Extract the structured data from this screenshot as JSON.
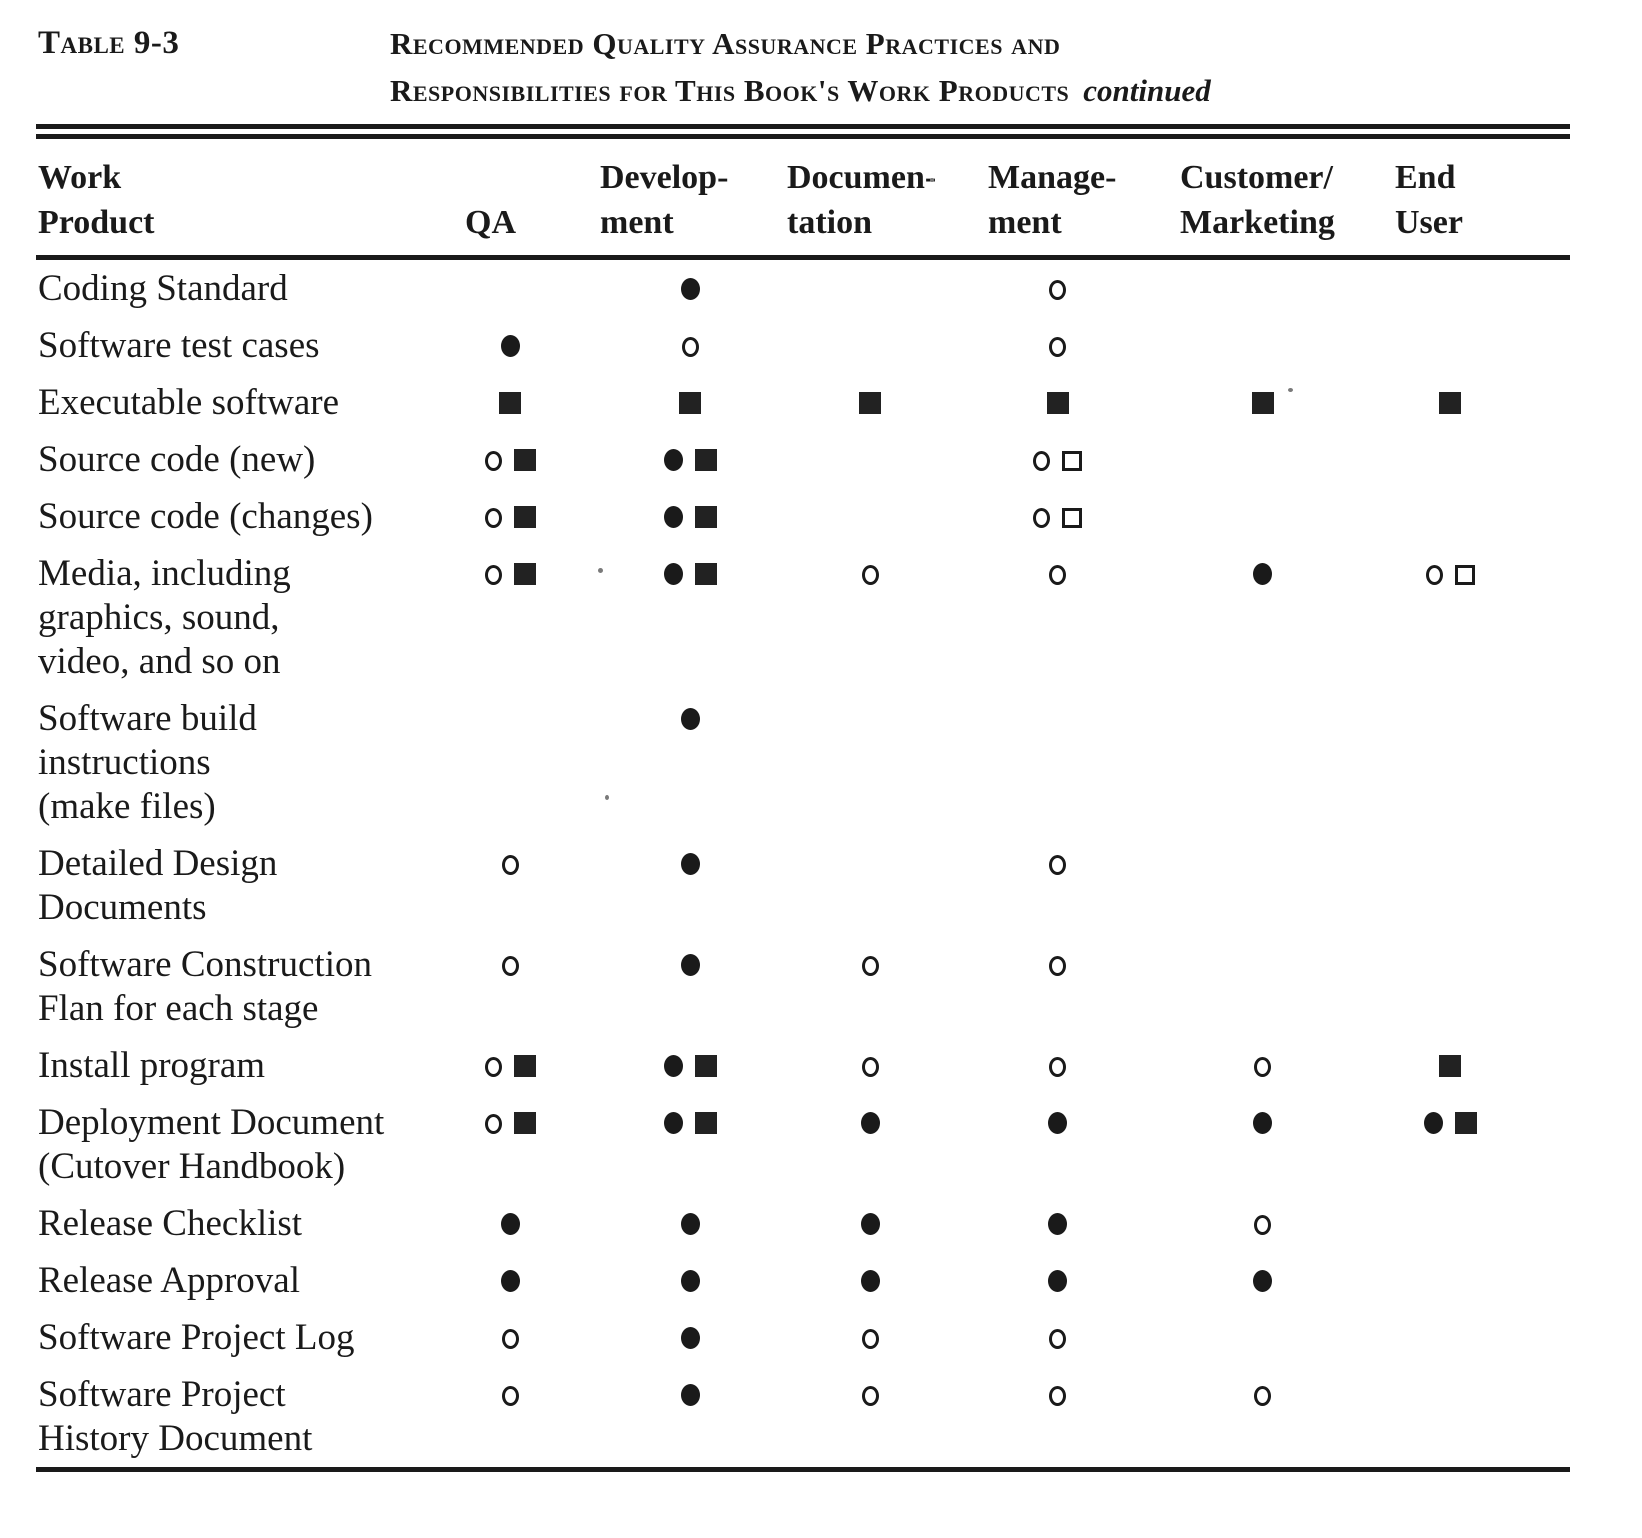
{
  "colors": {
    "ink": "#1a1a1a",
    "paper": "#ffffff"
  },
  "caption": {
    "table_label": "Table 9-3",
    "title_line1": "Recommended Quality Assurance Practices and",
    "title_line2": "Responsibilities for This Book's Work Products",
    "continued": "continued"
  },
  "header": {
    "columns": [
      {
        "l1": "Work",
        "l2": "Product"
      },
      {
        "l1": "",
        "l2": "QA"
      },
      {
        "l1": "Develop-",
        "l2": "ment"
      },
      {
        "l1": "Documen-",
        "l2": "tation"
      },
      {
        "l1": "Manage-",
        "l2": "ment"
      },
      {
        "l1": "Customer/",
        "l2": "Marketing"
      },
      {
        "l1": "End",
        "l2": "User"
      }
    ]
  },
  "symbols": {
    "fc": "filled-circle",
    "oc": "open-circle",
    "fs": "filled-square",
    "os": "open-square"
  },
  "rows": [
    {
      "label": [
        "Coding Standard"
      ],
      "cells": [
        [],
        [
          "fc"
        ],
        [],
        [
          "oc"
        ],
        [],
        []
      ]
    },
    {
      "label": [
        "Software test cases"
      ],
      "cells": [
        [
          "fc"
        ],
        [
          "oc"
        ],
        [],
        [
          "oc"
        ],
        [],
        []
      ]
    },
    {
      "label": [
        "Executable software"
      ],
      "cells": [
        [
          "fs"
        ],
        [
          "fs"
        ],
        [
          "fs"
        ],
        [
          "fs"
        ],
        [
          "fs"
        ],
        [
          "fs"
        ]
      ]
    },
    {
      "label": [
        "Source code (new)"
      ],
      "cells": [
        [
          "oc",
          "fs"
        ],
        [
          "fc",
          "fs"
        ],
        [],
        [
          "oc",
          "os"
        ],
        [],
        []
      ]
    },
    {
      "label": [
        "Source code (changes)"
      ],
      "cells": [
        [
          "oc",
          "fs"
        ],
        [
          "fc",
          "fs"
        ],
        [],
        [
          "oc",
          "os"
        ],
        [],
        []
      ]
    },
    {
      "label": [
        "Media, including",
        "graphics, sound,",
        "video, and so on"
      ],
      "cells": [
        [
          "oc",
          "fs"
        ],
        [
          "fc",
          "fs"
        ],
        [
          "oc"
        ],
        [
          "oc"
        ],
        [
          "fc"
        ],
        [
          "oc",
          "os"
        ]
      ]
    },
    {
      "label": [
        "Software  build",
        "instructions",
        "(make files)"
      ],
      "cells": [
        [],
        [
          "fc"
        ],
        [],
        [],
        [],
        []
      ]
    },
    {
      "label": [
        "Detailed Design",
        "Documents"
      ],
      "cells": [
        [
          "oc"
        ],
        [
          "fc"
        ],
        [],
        [
          "oc"
        ],
        [],
        []
      ]
    },
    {
      "label": [
        "Software  Construction",
        "Flan for each stage"
      ],
      "cells": [
        [
          "oc"
        ],
        [
          "fc"
        ],
        [
          "oc"
        ],
        [
          "oc"
        ],
        [],
        []
      ]
    },
    {
      "label": [
        "Install program"
      ],
      "cells": [
        [
          "oc",
          "fs"
        ],
        [
          "fc",
          "fs"
        ],
        [
          "oc"
        ],
        [
          "oc"
        ],
        [
          "oc"
        ],
        [
          "fs"
        ]
      ]
    },
    {
      "label": [
        "Deployment Document",
        "(Cutover  Handbook)"
      ],
      "cells": [
        [
          "oc",
          "fs"
        ],
        [
          "fc",
          "fs"
        ],
        [
          "fc"
        ],
        [
          "fc"
        ],
        [
          "fc"
        ],
        [
          "fc",
          "fs"
        ]
      ]
    },
    {
      "label": [
        "Release  Checklist"
      ],
      "cells": [
        [
          "fc"
        ],
        [
          "fc"
        ],
        [
          "fc"
        ],
        [
          "fc"
        ],
        [
          "oc"
        ],
        []
      ]
    },
    {
      "label": [
        "Release  Approval"
      ],
      "cells": [
        [
          "fc"
        ],
        [
          "fc"
        ],
        [
          "fc"
        ],
        [
          "fc"
        ],
        [
          "fc"
        ],
        []
      ]
    },
    {
      "label": [
        "Software Project Log"
      ],
      "cells": [
        [
          "oc"
        ],
        [
          "fc"
        ],
        [
          "oc"
        ],
        [
          "oc"
        ],
        [],
        []
      ]
    },
    {
      "label": [
        "Software Project",
        "History Document"
      ],
      "cells": [
        [
          "oc"
        ],
        [
          "fc"
        ],
        [
          "oc"
        ],
        [
          "oc"
        ],
        [
          "oc"
        ],
        []
      ]
    }
  ]
}
